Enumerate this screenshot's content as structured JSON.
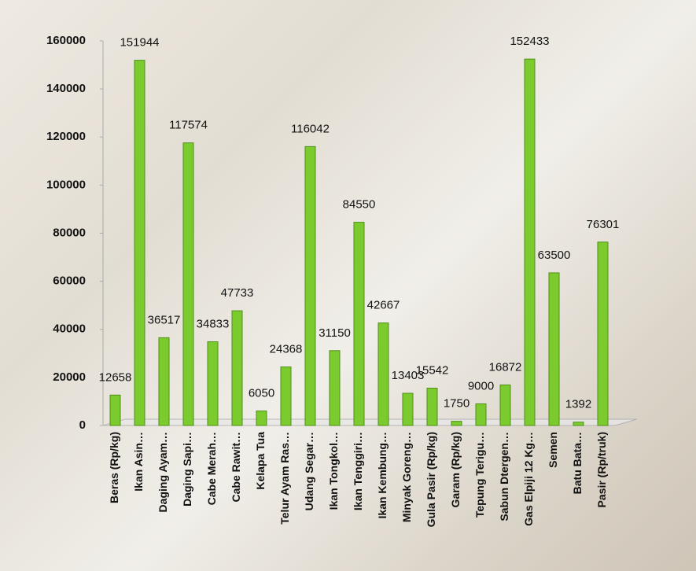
{
  "chart_data": {
    "type": "bar",
    "categories": [
      "Beras (Rp/kg)",
      "Ikan Asin…",
      "Daging Ayam…",
      "Daging Sapi…",
      "Cabe Merah…",
      "Cabe Rawit…",
      "Kelapa Tua",
      "Telur Ayam Ras…",
      "Udang Segar…",
      "Ikan Tongkol…",
      "Ikan Tenggiri…",
      "Ikan Kembung…",
      "Minyak Goreng…",
      "Gula Pasir (Rp/kg)",
      "Garam  (Rp/kg)",
      "Tepung Terigu…",
      "Sabun Dtergen…",
      "Gas Elpiji 12 Kg…",
      "Semen",
      "Batu Bata…",
      "Pasir (Rp/truk)"
    ],
    "values": [
      12658,
      151944,
      36517,
      117574,
      34833,
      47733,
      6050,
      24368,
      116042,
      31150,
      84550,
      42667,
      13403,
      15542,
      1750,
      9000,
      16872,
      152433,
      63500,
      1392,
      76301
    ],
    "color": "#7ccb2e",
    "ylim": [
      0,
      160000
    ],
    "yticks": [
      0,
      20000,
      40000,
      60000,
      80000,
      100000,
      120000,
      140000,
      160000
    ]
  }
}
